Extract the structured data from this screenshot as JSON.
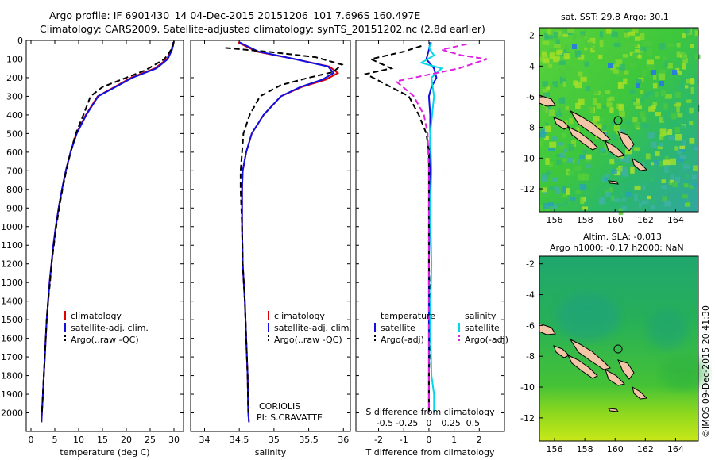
{
  "header": {
    "title_line1": "Argo profile: IF 6901430_14 04-Dec-2015 20151206_101 7.696S 160.497E",
    "title_line2": "Climatology: CARS2009. Satellite-adjusted climatology: synTS_20151202.nc (2.8d earlier)"
  },
  "colors": {
    "climatology": "#e00000",
    "satellite": "#1010e0",
    "argo": "#000000",
    "sal_satellite": "#00d8e8",
    "sal_argo": "#e020e0"
  },
  "chart_data": [
    {
      "type": "line",
      "xlabel": "temperature (deg C)",
      "ylim": [
        2100,
        0
      ],
      "xlim": [
        -1,
        32
      ],
      "x_ticks": [
        "0",
        "5",
        "10",
        "15",
        "20",
        "25",
        "30"
      ],
      "y_ticks": [
        "0",
        "100",
        "200",
        "300",
        "400",
        "500",
        "600",
        "700",
        "800",
        "900",
        "1000",
        "1100",
        "1200",
        "1300",
        "1400",
        "1500",
        "1600",
        "1700",
        "1800",
        "1900",
        "2000"
      ],
      "legend": [
        "climatology",
        "satellite-adj. clim.",
        "Argo(..raw -QC)"
      ],
      "series": [
        {
          "name": "climatology",
          "style": "solid",
          "color": "#e00000",
          "points": [
            [
              29.8,
              10
            ],
            [
              29.5,
              50
            ],
            [
              28.5,
              100
            ],
            [
              26,
              150
            ],
            [
              21,
              200
            ],
            [
              17.5,
              250
            ],
            [
              14,
              300
            ],
            [
              11.5,
              400
            ],
            [
              9.5,
              500
            ],
            [
              8.3,
              600
            ],
            [
              7.3,
              700
            ],
            [
              6.5,
              800
            ],
            [
              5.8,
              900
            ],
            [
              5.2,
              1000
            ],
            [
              4.7,
              1100
            ],
            [
              4.3,
              1200
            ],
            [
              3.9,
              1300
            ],
            [
              3.6,
              1400
            ],
            [
              3.3,
              1500
            ],
            [
              3.1,
              1600
            ],
            [
              2.9,
              1700
            ],
            [
              2.7,
              1800
            ],
            [
              2.5,
              1900
            ],
            [
              2.3,
              2000
            ],
            [
              2.2,
              2050
            ]
          ]
        },
        {
          "name": "satellite-adj. clim.",
          "style": "solid",
          "color": "#1010e0",
          "points": [
            [
              29.9,
              10
            ],
            [
              29.6,
              50
            ],
            [
              28.7,
              100
            ],
            [
              26.3,
              150
            ],
            [
              21.3,
              200
            ],
            [
              17.7,
              250
            ],
            [
              14.1,
              300
            ],
            [
              11.6,
              400
            ],
            [
              9.6,
              500
            ],
            [
              8.3,
              600
            ],
            [
              7.3,
              700
            ],
            [
              6.5,
              800
            ],
            [
              5.8,
              900
            ],
            [
              5.2,
              1000
            ],
            [
              4.7,
              1100
            ],
            [
              4.3,
              1200
            ],
            [
              3.9,
              1300
            ],
            [
              3.6,
              1400
            ],
            [
              3.3,
              1500
            ],
            [
              3.1,
              1600
            ],
            [
              2.9,
              1700
            ],
            [
              2.7,
              1800
            ],
            [
              2.5,
              1900
            ],
            [
              2.3,
              2000
            ],
            [
              2.2,
              2050
            ]
          ]
        },
        {
          "name": "Argo(..raw -QC)",
          "style": "dashed",
          "color": "#000000",
          "points": [
            [
              30.0,
              5
            ],
            [
              29.7,
              40
            ],
            [
              28,
              100
            ],
            [
              24,
              160
            ],
            [
              19,
              210
            ],
            [
              15,
              250
            ],
            [
              12.5,
              300
            ],
            [
              11,
              400
            ],
            [
              9.4,
              500
            ],
            [
              8.3,
              600
            ],
            [
              7.4,
              700
            ],
            [
              6.6,
              800
            ],
            [
              5.9,
              900
            ],
            [
              5.3,
              1000
            ],
            [
              4.8,
              1100
            ],
            [
              4.3,
              1200
            ],
            [
              4.0,
              1300
            ],
            [
              3.6,
              1400
            ],
            [
              3.3,
              1500
            ],
            [
              3.1,
              1600
            ],
            [
              2.9,
              1700
            ],
            [
              2.7,
              1800
            ],
            [
              2.5,
              1900
            ],
            [
              2.3,
              2000
            ]
          ]
        }
      ]
    },
    {
      "type": "line",
      "xlabel": "salinity",
      "ylim": [
        2100,
        0
      ],
      "xlim": [
        33.8,
        36.1
      ],
      "x_ticks": [
        "34",
        "34.5",
        "35",
        "35.5",
        "36"
      ],
      "legend": [
        "climatology",
        "satellite-adj. clim.",
        "Argo(..raw -QC)"
      ],
      "annotation": [
        "CORIOLIS",
        "PI: S.CRAVATTE"
      ],
      "series": [
        {
          "name": "climatology",
          "style": "solid",
          "color": "#e00000",
          "points": [
            [
              34.48,
              10
            ],
            [
              34.75,
              60
            ],
            [
              35.3,
              100
            ],
            [
              35.8,
              140
            ],
            [
              35.92,
              175
            ],
            [
              35.75,
              210
            ],
            [
              35.4,
              250
            ],
            [
              35.1,
              300
            ],
            [
              34.85,
              400
            ],
            [
              34.68,
              500
            ],
            [
              34.6,
              600
            ],
            [
              34.55,
              700
            ],
            [
              34.54,
              800
            ],
            [
              34.54,
              1000
            ],
            [
              34.55,
              1200
            ],
            [
              34.58,
              1400
            ],
            [
              34.6,
              1600
            ],
            [
              34.62,
              1800
            ],
            [
              34.63,
              2000
            ],
            [
              34.64,
              2050
            ]
          ]
        },
        {
          "name": "satellite-adj. clim.",
          "style": "solid",
          "color": "#1010e0",
          "points": [
            [
              34.5,
              10
            ],
            [
              34.78,
              60
            ],
            [
              35.3,
              100
            ],
            [
              35.78,
              140
            ],
            [
              35.86,
              175
            ],
            [
              35.7,
              210
            ],
            [
              35.38,
              250
            ],
            [
              35.1,
              300
            ],
            [
              34.85,
              400
            ],
            [
              34.68,
              500
            ],
            [
              34.6,
              600
            ],
            [
              34.55,
              700
            ],
            [
              34.54,
              800
            ],
            [
              34.54,
              1000
            ],
            [
              34.55,
              1200
            ],
            [
              34.58,
              1400
            ],
            [
              34.6,
              1600
            ],
            [
              34.62,
              1800
            ],
            [
              34.63,
              2000
            ],
            [
              34.64,
              2050
            ]
          ]
        },
        {
          "name": "Argo(..raw -QC)",
          "style": "dashed",
          "color": "#000000",
          "points": [
            [
              34.3,
              40
            ],
            [
              34.9,
              60
            ],
            [
              35.6,
              90
            ],
            [
              35.98,
              130
            ],
            [
              35.85,
              170
            ],
            [
              35.5,
              200
            ],
            [
              35.1,
              240
            ],
            [
              34.8,
              300
            ],
            [
              34.65,
              400
            ],
            [
              34.56,
              500
            ],
            [
              34.54,
              600
            ],
            [
              34.52,
              700
            ],
            [
              34.52,
              800
            ],
            [
              34.54,
              1000
            ],
            [
              34.55,
              1200
            ],
            [
              34.58,
              1400
            ],
            [
              34.6,
              1600
            ],
            [
              34.62,
              1800
            ],
            [
              34.63,
              2000
            ]
          ]
        }
      ]
    },
    {
      "type": "line",
      "xlabel": "T difference from climatology",
      "top_xlabel": "S difference from climatology",
      "ylim": [
        2100,
        0
      ],
      "xlim": [
        -2.9,
        3.0
      ],
      "x_ticks": [
        "-2",
        "-1",
        "0",
        "1",
        "2"
      ],
      "top_ticks": [
        "-0.5",
        "-0.25",
        "0",
        "0.25",
        "0.5"
      ],
      "legend_temperature": [
        "temperature",
        "satellite",
        "Argo(-adj)"
      ],
      "legend_salinity": [
        "salinity",
        "satellite",
        "Argo(-adj)"
      ],
      "series": [
        {
          "name": "satellite",
          "style": "solid",
          "color": "#1010e0",
          "points": [
            [
              0.05,
              10
            ],
            [
              0,
              50
            ],
            [
              -0.1,
              100
            ],
            [
              0.2,
              150
            ],
            [
              0.3,
              200
            ],
            [
              0.1,
              250
            ],
            [
              0,
              300
            ],
            [
              0.05,
              400
            ],
            [
              0.05,
              600
            ],
            [
              0.05,
              800
            ],
            [
              0.02,
              1000
            ],
            [
              0,
              1200
            ],
            [
              0,
              1400
            ],
            [
              0,
              1600
            ],
            [
              0,
              1800
            ],
            [
              0,
              2000
            ]
          ]
        },
        {
          "name": "Argo(-adj)",
          "style": "dashed",
          "color": "#000000",
          "points": [
            [
              -0.3,
              30
            ],
            [
              -1,
              60
            ],
            [
              -2.3,
              100
            ],
            [
              -1.5,
              150
            ],
            [
              -2.5,
              180
            ],
            [
              -1.8,
              230
            ],
            [
              -0.8,
              300
            ],
            [
              -0.4,
              400
            ],
            [
              -0.1,
              500
            ],
            [
              0,
              600
            ],
            [
              0,
              800
            ],
            [
              0,
              1000
            ],
            [
              0,
              1200
            ],
            [
              0.05,
              1500
            ],
            [
              0,
              1800
            ],
            [
              0,
              2000
            ]
          ]
        },
        {
          "name": "salinity satellite",
          "style": "solid",
          "color": "#00d8e8",
          "points": [
            [
              0.1,
              10
            ],
            [
              0,
              40
            ],
            [
              0.2,
              80
            ],
            [
              -0.3,
              120
            ],
            [
              0.5,
              150
            ],
            [
              0.1,
              200
            ],
            [
              0.2,
              300
            ],
            [
              0.05,
              500
            ],
            [
              0.1,
              700
            ],
            [
              0.05,
              900
            ],
            [
              0.1,
              1200
            ],
            [
              0.05,
              1500
            ],
            [
              0.1,
              1800
            ],
            [
              0.2,
              1900
            ],
            [
              0.2,
              2000
            ]
          ]
        },
        {
          "name": "salinity Argo(-adj)",
          "style": "dashed",
          "color": "#e020e0",
          "points": [
            [
              1.5,
              20
            ],
            [
              0.5,
              50
            ],
            [
              1.3,
              80
            ],
            [
              2.3,
              100
            ],
            [
              1.2,
              150
            ],
            [
              -1.3,
              220
            ],
            [
              -0.6,
              300
            ],
            [
              -0.2,
              400
            ],
            [
              -0.05,
              500
            ],
            [
              0,
              700
            ],
            [
              0,
              900
            ],
            [
              0,
              1200
            ],
            [
              0,
              1500
            ],
            [
              0,
              1800
            ],
            [
              0,
              2000
            ]
          ]
        }
      ]
    },
    {
      "type": "heatmap",
      "title": "sat. SST: 29.8 Argo: 30.1",
      "xlim": [
        155.0,
        165.5
      ],
      "ylim": [
        -13.5,
        -1.5
      ],
      "x_ticks": [
        "156",
        "158",
        "160",
        "162",
        "164"
      ],
      "y_ticks": [
        "-2",
        "-4",
        "-6",
        "-8",
        "-10",
        "-12"
      ],
      "marker": [
        160.5,
        -7.7
      ]
    },
    {
      "type": "heatmap",
      "title_line1": "Altim. SLA: -0.013",
      "title_line2": "Argo h1000: -0.17 h2000: NaN",
      "xlim": [
        155.0,
        165.5
      ],
      "ylim": [
        -13.5,
        -1.5
      ],
      "x_ticks": [
        "156",
        "158",
        "160",
        "162",
        "164"
      ],
      "y_ticks": [
        "-2",
        "-4",
        "-6",
        "-8",
        "-10",
        "-12"
      ],
      "marker": [
        160.5,
        -7.7
      ]
    }
  ],
  "credit": "©IMOS 09-Dec-2015 20:41:30"
}
